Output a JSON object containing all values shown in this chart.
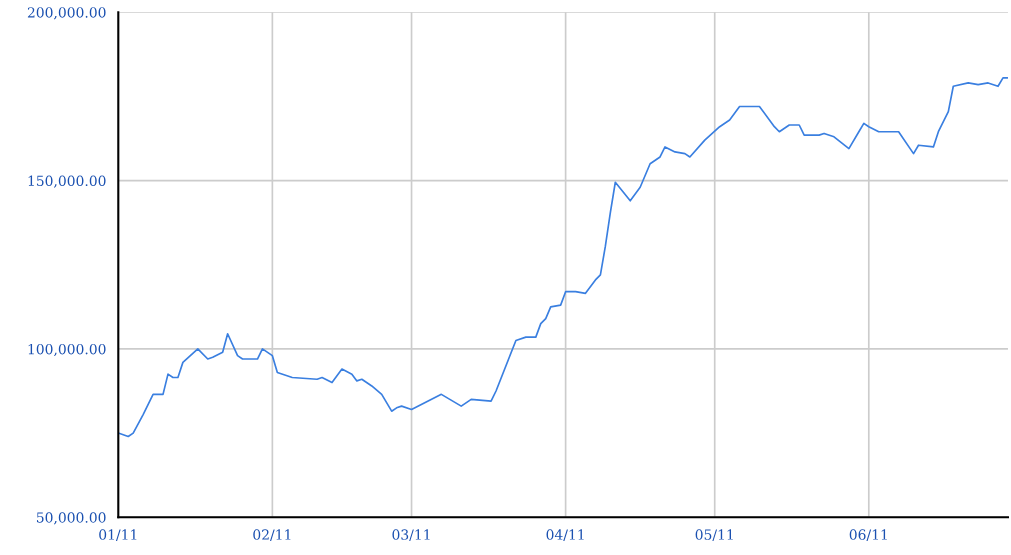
{
  "chart_data": {
    "type": "line",
    "x": [
      "2011-01-01",
      "2011-01-03",
      "2011-01-04",
      "2011-01-06",
      "2011-01-08",
      "2011-01-10",
      "2011-01-11",
      "2011-01-12",
      "2011-01-13",
      "2011-01-14",
      "2011-01-17",
      "2011-01-19",
      "2011-01-20",
      "2011-01-22",
      "2011-01-23",
      "2011-01-25",
      "2011-01-26",
      "2011-01-29",
      "2011-01-30",
      "2011-02-01",
      "2011-02-02",
      "2011-02-05",
      "2011-02-10",
      "2011-02-11",
      "2011-02-13",
      "2011-02-15",
      "2011-02-17",
      "2011-02-18",
      "2011-02-19",
      "2011-02-21",
      "2011-02-23",
      "2011-02-25",
      "2011-02-26",
      "2011-02-27",
      "2011-03-01",
      "2011-03-07",
      "2011-03-11",
      "2011-03-13",
      "2011-03-17",
      "2011-03-18",
      "2011-03-22",
      "2011-03-24",
      "2011-03-26",
      "2011-03-27",
      "2011-03-28",
      "2011-03-29",
      "2011-03-31",
      "2011-04-01",
      "2011-04-03",
      "2011-04-05",
      "2011-04-07",
      "2011-04-08",
      "2011-04-09",
      "2011-04-10",
      "2011-04-11",
      "2011-04-14",
      "2011-04-16",
      "2011-04-18",
      "2011-04-20",
      "2011-04-21",
      "2011-04-23",
      "2011-04-25",
      "2011-04-26",
      "2011-04-29",
      "2011-05-02",
      "2011-05-04",
      "2011-05-06",
      "2011-05-10",
      "2011-05-13",
      "2011-05-14",
      "2011-05-16",
      "2011-05-18",
      "2011-05-19",
      "2011-05-22",
      "2011-05-23",
      "2011-05-25",
      "2011-05-28",
      "2011-05-30",
      "2011-05-31",
      "2011-06-01",
      "2011-06-03",
      "2011-06-07",
      "2011-06-10",
      "2011-06-11",
      "2011-06-14",
      "2011-06-15",
      "2011-06-17",
      "2011-06-18",
      "2011-06-21",
      "2011-06-23",
      "2011-06-25",
      "2011-06-27",
      "2011-06-28",
      "2011-06-29"
    ],
    "series": [
      {
        "color": "#3a7fe0",
        "values": [
          75000,
          74000,
          75000,
          80500,
          86500,
          86500,
          92500,
          91500,
          91500,
          96000,
          100000,
          97000,
          97500,
          99000,
          104500,
          98000,
          97000,
          97000,
          100000,
          98000,
          93000,
          91500,
          91000,
          91500,
          90000,
          94000,
          92500,
          90500,
          91000,
          89000,
          86500,
          81500,
          82500,
          83000,
          82000,
          86500,
          83000,
          85000,
          84500,
          87500,
          102500,
          103500,
          103500,
          107500,
          109000,
          112500,
          113000,
          117000,
          117000,
          116500,
          120500,
          122000,
          130500,
          140500,
          149500,
          144000,
          148000,
          155000,
          157000,
          160000,
          158500,
          158000,
          157000,
          162000,
          166000,
          168000,
          172000,
          172000,
          166000,
          164500,
          166500,
          166500,
          163500,
          163500,
          164000,
          163000,
          159500,
          164500,
          167000,
          166000,
          164500,
          164500,
          158000,
          160500,
          160000,
          164500,
          170500,
          178000,
          179000,
          178500,
          179000,
          178000,
          180500,
          180500
        ]
      }
    ],
    "xlim": [
      "2011-01-01",
      "2011-06-29"
    ],
    "xticks": [
      {
        "value": "2011-01-01",
        "label": "01/11"
      },
      {
        "value": "2011-02-01",
        "label": "02/11"
      },
      {
        "value": "2011-03-01",
        "label": "03/11"
      },
      {
        "value": "2011-04-01",
        "label": "04/11"
      },
      {
        "value": "2011-05-01",
        "label": "05/11"
      },
      {
        "value": "2011-06-01",
        "label": "06/11"
      }
    ],
    "ylim": [
      50000,
      200000
    ],
    "yticks": [
      {
        "value": 50000,
        "label": "50,000.00"
      },
      {
        "value": 100000,
        "label": "100,000.00"
      },
      {
        "value": 150000,
        "label": "150,000.00"
      },
      {
        "value": 200000,
        "label": "200,000.00"
      }
    ],
    "grid": true,
    "legend": false,
    "marker": "none",
    "line_style": "solid"
  }
}
